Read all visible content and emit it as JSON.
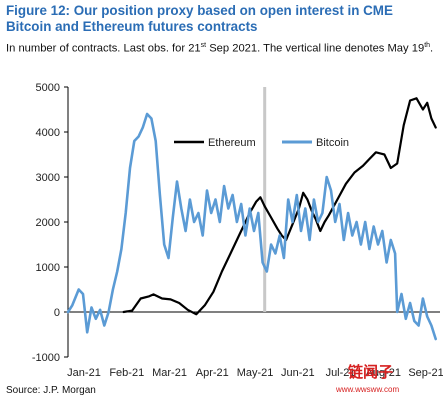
{
  "header": {
    "title_line1": "Figure 12: Our position proxy based on open interest in CME",
    "title_line2": "Bitcoin and Ethereum futures contracts",
    "subtitle_pre": "In number of contracts. Last obs. for 21",
    "subtitle_sup1": "st",
    "subtitle_mid": " Sep 2021. The vertical line denotes May 19",
    "subtitle_sup2": "th",
    "subtitle_post": "."
  },
  "footer": {
    "source": "Source: J.P. Morgan",
    "watermark": "链闻子",
    "watermark_url": "www.wwsww.com"
  },
  "chart_data": {
    "type": "line",
    "title": "",
    "xlabel": "",
    "ylabel": "",
    "x_ticks": [
      "Jan-21",
      "Feb-21",
      "Mar-21",
      "Apr-21",
      "May-21",
      "Jun-21",
      "Jul-21",
      "Aug-21",
      "Sep-21"
    ],
    "y_ticks": [
      "-1000",
      "0",
      "1000",
      "2000",
      "3000",
      "4000",
      "5000"
    ],
    "ylim": [
      -1000,
      5000
    ],
    "xlim": [
      0,
      8.7
    ],
    "vertical_line_x": 4.6,
    "grid": false,
    "legend_position": "top-center",
    "series": [
      {
        "name": "Ethereum",
        "color": "#000000",
        "points": [
          [
            1.3,
            0
          ],
          [
            1.5,
            30
          ],
          [
            1.7,
            300
          ],
          [
            1.9,
            350
          ],
          [
            2.0,
            390
          ],
          [
            2.2,
            300
          ],
          [
            2.4,
            280
          ],
          [
            2.6,
            200
          ],
          [
            2.8,
            50
          ],
          [
            3.0,
            -50
          ],
          [
            3.2,
            150
          ],
          [
            3.4,
            450
          ],
          [
            3.6,
            900
          ],
          [
            3.8,
            1300
          ],
          [
            4.0,
            1700
          ],
          [
            4.1,
            1900
          ],
          [
            4.25,
            2200
          ],
          [
            4.4,
            2450
          ],
          [
            4.5,
            2550
          ],
          [
            4.6,
            2350
          ],
          [
            4.75,
            2100
          ],
          [
            4.9,
            1850
          ],
          [
            5.0,
            1700
          ],
          [
            5.1,
            1600
          ],
          [
            5.25,
            1950
          ],
          [
            5.4,
            2300
          ],
          [
            5.5,
            2650
          ],
          [
            5.6,
            2500
          ],
          [
            5.7,
            2250
          ],
          [
            5.8,
            2050
          ],
          [
            5.9,
            1800
          ],
          [
            6.0,
            2000
          ],
          [
            6.1,
            2150
          ],
          [
            6.3,
            2500
          ],
          [
            6.5,
            2850
          ],
          [
            6.7,
            3100
          ],
          [
            6.9,
            3250
          ],
          [
            7.05,
            3400
          ],
          [
            7.2,
            3550
          ],
          [
            7.4,
            3500
          ],
          [
            7.55,
            3200
          ],
          [
            7.7,
            3300
          ],
          [
            7.85,
            4150
          ],
          [
            8.0,
            4700
          ],
          [
            8.15,
            4750
          ],
          [
            8.3,
            4500
          ],
          [
            8.4,
            4650
          ],
          [
            8.5,
            4300
          ],
          [
            8.6,
            4100
          ]
        ]
      },
      {
        "name": "Bitcoin",
        "color": "#5b9bd5",
        "points": [
          [
            0.0,
            0
          ],
          [
            0.1,
            150
          ],
          [
            0.25,
            500
          ],
          [
            0.35,
            400
          ],
          [
            0.45,
            -450
          ],
          [
            0.55,
            100
          ],
          [
            0.65,
            -150
          ],
          [
            0.75,
            50
          ],
          [
            0.85,
            -300
          ],
          [
            0.95,
            0
          ],
          [
            1.05,
            500
          ],
          [
            1.15,
            900
          ],
          [
            1.25,
            1400
          ],
          [
            1.35,
            2200
          ],
          [
            1.45,
            3200
          ],
          [
            1.55,
            3800
          ],
          [
            1.65,
            3900
          ],
          [
            1.75,
            4100
          ],
          [
            1.85,
            4400
          ],
          [
            1.95,
            4300
          ],
          [
            2.05,
            3800
          ],
          [
            2.15,
            2600
          ],
          [
            2.25,
            1500
          ],
          [
            2.35,
            1200
          ],
          [
            2.45,
            2100
          ],
          [
            2.55,
            2900
          ],
          [
            2.65,
            2300
          ],
          [
            2.75,
            1800
          ],
          [
            2.85,
            2500
          ],
          [
            2.95,
            2000
          ],
          [
            3.05,
            2200
          ],
          [
            3.15,
            1700
          ],
          [
            3.25,
            2700
          ],
          [
            3.35,
            2200
          ],
          [
            3.45,
            2500
          ],
          [
            3.55,
            2000
          ],
          [
            3.65,
            2800
          ],
          [
            3.75,
            2300
          ],
          [
            3.85,
            2600
          ],
          [
            3.95,
            2000
          ],
          [
            4.05,
            2400
          ],
          [
            4.15,
            1700
          ],
          [
            4.25,
            2300
          ],
          [
            4.35,
            1800
          ],
          [
            4.45,
            2200
          ],
          [
            4.55,
            1100
          ],
          [
            4.65,
            900
          ],
          [
            4.75,
            1500
          ],
          [
            4.85,
            1300
          ],
          [
            4.95,
            1700
          ],
          [
            5.05,
            1200
          ],
          [
            5.15,
            2500
          ],
          [
            5.25,
            2000
          ],
          [
            5.35,
            2600
          ],
          [
            5.45,
            1800
          ],
          [
            5.55,
            2300
          ],
          [
            5.65,
            1600
          ],
          [
            5.75,
            2500
          ],
          [
            5.85,
            2000
          ],
          [
            5.95,
            2200
          ],
          [
            6.05,
            3000
          ],
          [
            6.15,
            2700
          ],
          [
            6.25,
            2000
          ],
          [
            6.35,
            2400
          ],
          [
            6.45,
            1600
          ],
          [
            6.55,
            2200
          ],
          [
            6.65,
            1700
          ],
          [
            6.75,
            2000
          ],
          [
            6.85,
            1500
          ],
          [
            6.95,
            2000
          ],
          [
            7.05,
            1400
          ],
          [
            7.15,
            1900
          ],
          [
            7.25,
            1500
          ],
          [
            7.35,
            1800
          ],
          [
            7.45,
            1100
          ],
          [
            7.55,
            1600
          ],
          [
            7.65,
            1300
          ],
          [
            7.7,
            0
          ],
          [
            7.8,
            400
          ],
          [
            7.9,
            -150
          ],
          [
            8.0,
            200
          ],
          [
            8.1,
            -200
          ],
          [
            8.2,
            -300
          ],
          [
            8.3,
            300
          ],
          [
            8.4,
            -100
          ],
          [
            8.5,
            -300
          ],
          [
            8.6,
            -600
          ]
        ]
      }
    ]
  }
}
